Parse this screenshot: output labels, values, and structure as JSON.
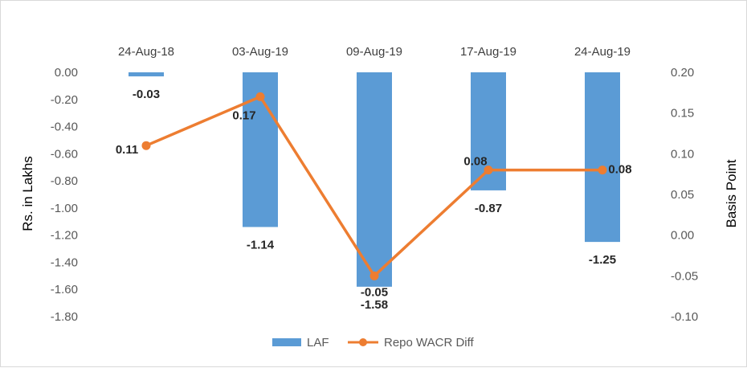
{
  "chart_data": {
    "type": "bar+line",
    "categories": [
      "24-Aug-18",
      "03-Aug-19",
      "09-Aug-19",
      "17-Aug-19",
      "24-Aug-19"
    ],
    "series": [
      {
        "name": "LAF",
        "type": "bar",
        "axis": "left",
        "values": [
          -0.03,
          -1.14,
          -1.58,
          -0.87,
          -1.25
        ],
        "labels": [
          "-0.03",
          "-1.14",
          "-1.58",
          "-0.87",
          "-1.25"
        ]
      },
      {
        "name": "Repo WACR Diff",
        "type": "line",
        "axis": "right",
        "values": [
          0.11,
          0.17,
          -0.05,
          0.08,
          0.08
        ],
        "labels": [
          "0.11",
          "0.17",
          "-0.05",
          "0.08",
          "0.08"
        ]
      }
    ],
    "y_left": {
      "label": "Rs. in Lakhs",
      "ylim": [
        -1.8,
        0.0
      ],
      "ticks": [
        0.0,
        -0.2,
        -0.4,
        -0.6,
        -0.8,
        -1.0,
        -1.2,
        -1.4,
        -1.6,
        -1.8
      ],
      "tick_labels": [
        "0.00",
        "-0.20",
        "-0.40",
        "-0.60",
        "-0.80",
        "-1.00",
        "-1.20",
        "-1.40",
        "-1.60",
        "-1.80"
      ]
    },
    "y_right": {
      "label": "Basis Point",
      "ylim": [
        -0.1,
        0.2
      ],
      "ticks": [
        0.2,
        0.15,
        0.1,
        0.05,
        0.0,
        -0.05,
        -0.1
      ],
      "tick_labels": [
        "0.20",
        "0.15",
        "0.10",
        "0.05",
        "0.00",
        "-0.05",
        "-0.10"
      ]
    },
    "grid": false,
    "legend_position": "bottom",
    "colors": {
      "bar": "#5b9bd5",
      "line": "#ed7d31"
    }
  }
}
